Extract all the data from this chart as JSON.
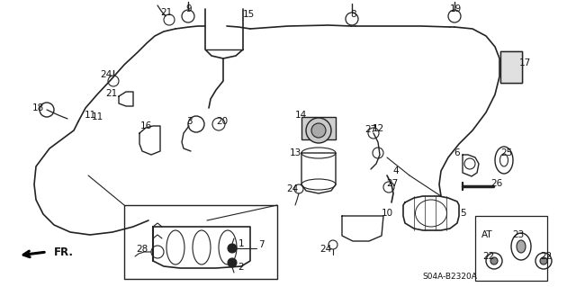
{
  "background_color": "#ffffff",
  "diagram_code": "S04A-B2320A",
  "line_color": "#222222",
  "text_color": "#111111",
  "label_fontsize": 7.5
}
